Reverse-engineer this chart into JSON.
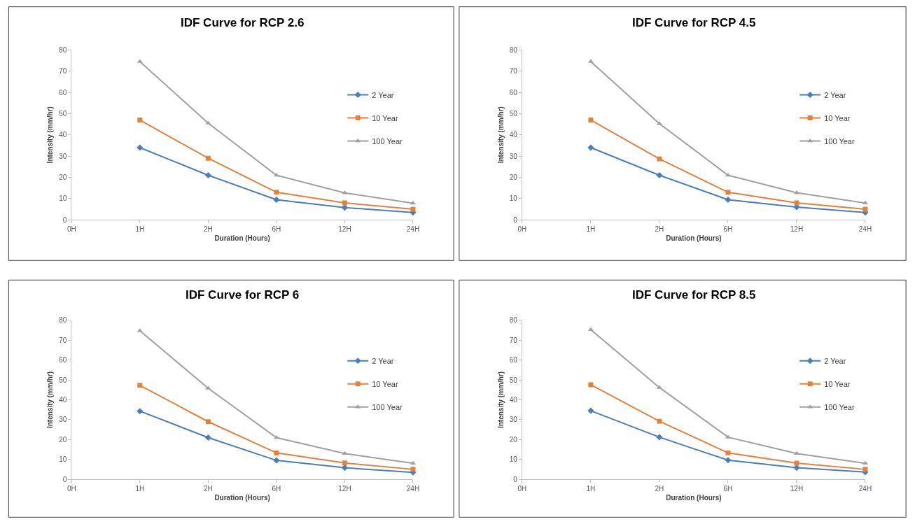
{
  "chart_data": [
    {
      "type": "line",
      "title": "IDF Curve for RCP 2.6",
      "xlabel": "Duration (Hours)",
      "ylabel": "Intensity (mm/hr)",
      "categories": [
        "0H",
        "1H",
        "2H",
        "6H",
        "12H",
        "24H"
      ],
      "ylim": [
        0,
        80
      ],
      "yticks": [
        0,
        10,
        20,
        30,
        40,
        50,
        60,
        70,
        80
      ],
      "legend": "right",
      "line_style": "solid",
      "series": [
        {
          "name": "2 Year",
          "color": "#4a7ebb",
          "marker": "diamond",
          "values": [
            null,
            34,
            21,
            9.5,
            5.8,
            3.5
          ]
        },
        {
          "name": "10 Year",
          "color": "#e0823f",
          "marker": "square",
          "values": [
            null,
            47,
            29,
            13,
            8,
            5
          ]
        },
        {
          "name": "100 Year",
          "color": "#a0a0a0",
          "marker": "triangle",
          "values": [
            null,
            74.5,
            45.5,
            21,
            12.7,
            7.8
          ]
        }
      ]
    },
    {
      "type": "line",
      "title": "IDF Curve for RCP 4.5",
      "xlabel": "Duration (Hours)",
      "ylabel": "Intensity (mm/hr)",
      "categories": [
        "0H",
        "1H",
        "2H",
        "6H",
        "12H",
        "24H"
      ],
      "ylim": [
        0,
        80
      ],
      "yticks": [
        0,
        10,
        20,
        30,
        40,
        50,
        60,
        70,
        80
      ],
      "legend": "right",
      "line_style": "solid",
      "series": [
        {
          "name": "2 Year",
          "color": "#4a7ebb",
          "marker": "diamond",
          "values": [
            null,
            34,
            21,
            9.5,
            6,
            3.5
          ]
        },
        {
          "name": "10 Year",
          "color": "#e0823f",
          "marker": "square",
          "values": [
            null,
            47,
            28.7,
            13,
            8,
            5
          ]
        },
        {
          "name": "100 Year",
          "color": "#a0a0a0",
          "marker": "triangle",
          "values": [
            null,
            74.5,
            45.3,
            21,
            12.8,
            7.9
          ]
        }
      ]
    },
    {
      "type": "line",
      "title": "IDF Curve for RCP 6",
      "xlabel": "Duration (Hours)",
      "ylabel": "Intensity (mm/hr)",
      "categories": [
        "0H",
        "1H",
        "2H",
        "6H",
        "12H",
        "24H"
      ],
      "ylim": [
        0,
        80
      ],
      "yticks": [
        0,
        10,
        20,
        30,
        40,
        50,
        60,
        70,
        80
      ],
      "legend": "right",
      "line_style": "solid",
      "series": [
        {
          "name": "2 Year",
          "color": "#4a7ebb",
          "marker": "diamond",
          "values": [
            null,
            34.3,
            21,
            9.5,
            5.8,
            3.5
          ]
        },
        {
          "name": "10 Year",
          "color": "#e0823f",
          "marker": "square",
          "values": [
            null,
            47.3,
            29,
            13.3,
            8.2,
            5
          ]
        },
        {
          "name": "100 Year",
          "color": "#a0a0a0",
          "marker": "triangle",
          "values": [
            null,
            74.8,
            45.8,
            21,
            13,
            8
          ]
        }
      ]
    },
    {
      "type": "line",
      "title": "IDF Curve for RCP 8.5",
      "xlabel": "Duration (Hours)",
      "ylabel": "Intensity (mm/hr)",
      "categories": [
        "0H",
        "1H",
        "2H",
        "6H",
        "12H",
        "24H"
      ],
      "ylim": [
        0,
        80
      ],
      "yticks": [
        0,
        10,
        20,
        30,
        40,
        50,
        60,
        70,
        80
      ],
      "legend": "right",
      "line_style": "solid",
      "series": [
        {
          "name": "2 Year",
          "color": "#4a7ebb",
          "marker": "diamond",
          "values": [
            null,
            34.5,
            21.2,
            9.6,
            5.8,
            3.6
          ]
        },
        {
          "name": "10 Year",
          "color": "#e0823f",
          "marker": "square",
          "values": [
            null,
            47.6,
            29.2,
            13.3,
            8.1,
            5
          ]
        },
        {
          "name": "100 Year",
          "color": "#a0a0a0",
          "marker": "triangle",
          "values": [
            null,
            75.3,
            46.2,
            21.2,
            13,
            8
          ]
        }
      ]
    }
  ]
}
